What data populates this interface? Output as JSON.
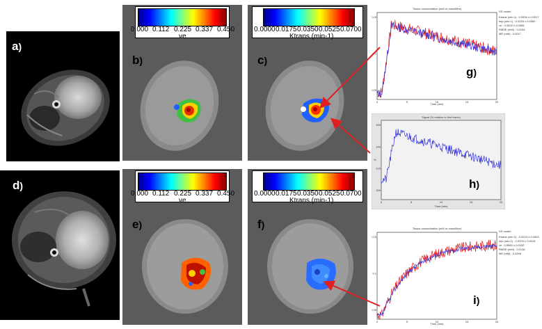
{
  "labels": {
    "a": "a",
    "b": "b",
    "c": "c",
    "d": "d",
    "e": "e",
    "f": "f",
    "g": "g",
    "h": "h",
    "i": "i",
    "paren": ")"
  },
  "colorbars": {
    "ve": {
      "ticks": [
        "0.000",
        "0.112",
        "0.225",
        "0.337",
        "0.450"
      ],
      "label": "ve"
    },
    "ktrans": {
      "ticks": [
        "0.0000",
        "0.0175",
        "0.0350",
        "0.0525",
        "0.0700"
      ],
      "label": "Ktrans (min-1)"
    }
  },
  "plot_g": {
    "title": "Tissue concentration (mM or mmol/litre)",
    "xlabel": "Time (min)",
    "legend_title": "SS model",
    "legend": [
      "Ktrans (min-1) : 0.0634 ± 0.0017",
      "kep (min-1) : 0.2418 ± 0.0082",
      "ve : 0.2632 ± 0.0065",
      "RMSE (mM) : 0.0164",
      "ME (mM) : 0.0017"
    ],
    "xticks": [
      "0",
      "5",
      "10",
      "15",
      "20"
    ],
    "yticks": [
      "0.15",
      "0.1",
      "0.05"
    ]
  },
  "plot_h": {
    "title": "Signal (% relative to first frame)",
    "xlabel": "Time (min)",
    "ylabel": "%",
    "xticks": [
      "0",
      "5",
      "10",
      "15",
      "20"
    ],
    "yticks": [
      "160",
      "140",
      "120",
      "100"
    ]
  },
  "plot_i": {
    "title": "Tissue concentration (mM or mmol/litre)",
    "xlabel": "Time (min)",
    "legend_title": "SS model",
    "legend": [
      "Ktrans (min-1) : 0.0213 ± 0.0003",
      "kep (min-1) : 0.0376 ± 0.0015",
      "ve : 0.5660 ± 0.0232",
      "RMSE (mM) : 0.0136",
      "ME (mM) : 0.0008"
    ],
    "xticks": [
      "0",
      "5",
      "10",
      "15",
      "20"
    ],
    "yticks": [
      "0.15",
      "0.1",
      "0.05"
    ]
  },
  "colors": {
    "arrow": "#e02020",
    "red_curve": "#e01818",
    "blue_curve": "#3030d8",
    "panel_bg": "#5b5b5b"
  }
}
